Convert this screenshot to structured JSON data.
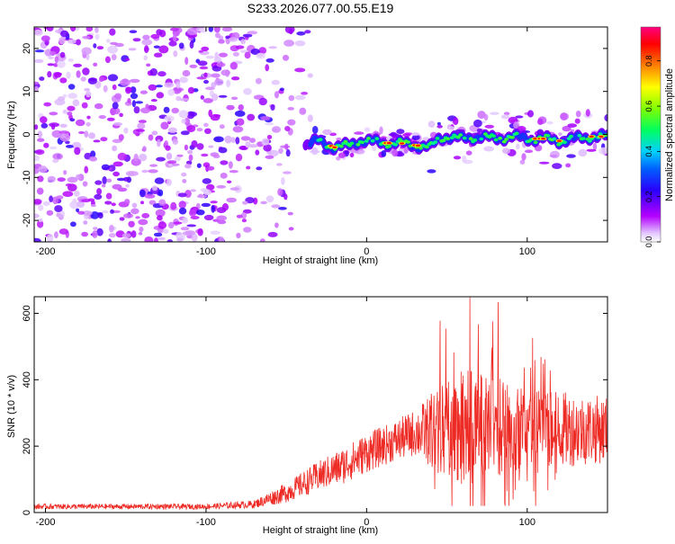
{
  "title": "S233.2026.077.00.55.E19",
  "colors": {
    "snr_line": "#ee2a24",
    "axis": "#000000",
    "gradient_stops": [
      "#ffffff",
      "#b400ff",
      "#0000ff",
      "#00b4ff",
      "#00ff80",
      "#80ff00",
      "#ffff00",
      "#ff8000",
      "#ff0000",
      "#ff0080"
    ]
  },
  "chart_data": [
    {
      "id": "spectrogram",
      "type": "heatmap",
      "xlabel": "Height of straight line (km)",
      "ylabel": "Frequency (Hz)",
      "xlim": [
        -207,
        150
      ],
      "ylim": [
        -25,
        25
      ],
      "xticks": [
        -200,
        -100,
        0,
        100
      ],
      "xtick_labels": [
        "-200",
        "-100",
        "0",
        "100"
      ],
      "yticks": [
        20,
        10,
        0,
        -10,
        -20
      ],
      "ytick_labels": [
        "20",
        "10",
        "0",
        "-10",
        "-20"
      ],
      "signal_track": {
        "x": [
          -38,
          -30,
          -20,
          -10,
          -5,
          0,
          10,
          20,
          30,
          40,
          45,
          50,
          60,
          70,
          80,
          90,
          100,
          110,
          120,
          130,
          140,
          150
        ],
        "y": [
          -2.5,
          -1.5,
          -3,
          -2.5,
          -1.5,
          -1.5,
          -2,
          -2,
          -2.5,
          -3,
          -1,
          -0.5,
          -1,
          -0.5,
          -1,
          -0.5,
          -1,
          -1,
          -1.5,
          -1,
          -0.5,
          -0.5
        ]
      },
      "colorbar": {
        "label": "Normalized spectral amplitude",
        "ticks": [
          0.0,
          0.2,
          0.4,
          0.6,
          0.8
        ],
        "tick_labels": [
          "0.0",
          "0.2",
          "0.4",
          "0.6",
          "0.8"
        ],
        "range": [
          0,
          0.95
        ]
      }
    },
    {
      "id": "snr",
      "type": "line",
      "xlabel": "Height of straight line (km)",
      "ylabel": "SNR (10 * v/v)",
      "xlim": [
        -207,
        150
      ],
      "ylim": [
        0,
        650
      ],
      "xticks": [
        -200,
        -100,
        0,
        100
      ],
      "xtick_labels": [
        "-200",
        "-100",
        "0",
        "100"
      ],
      "yticks": [
        0,
        200,
        400,
        600
      ],
      "ytick_labels": [
        "0",
        "200",
        "400",
        "600"
      ],
      "envelope": {
        "x": [
          -207,
          -150,
          -100,
          -70,
          -50,
          -30,
          -15,
          0,
          15,
          30,
          45,
          60,
          70,
          90,
          110,
          130,
          150
        ],
        "mean": [
          18,
          18,
          18,
          25,
          60,
          110,
          140,
          180,
          210,
          240,
          250,
          260,
          270,
          260,
          250,
          250,
          250
        ],
        "spread": [
          8,
          8,
          8,
          12,
          30,
          45,
          55,
          60,
          60,
          70,
          130,
          170,
          170,
          140,
          120,
          110,
          100
        ]
      }
    }
  ]
}
